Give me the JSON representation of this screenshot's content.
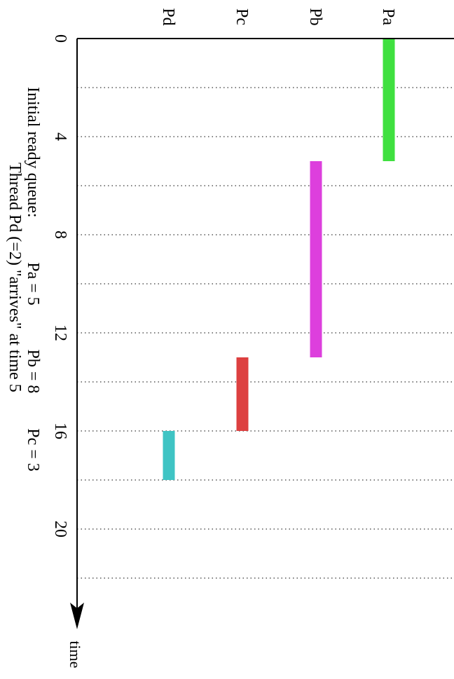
{
  "chart_data": {
    "type": "gantt",
    "axis": {
      "label": "time",
      "range": [
        0,
        23
      ],
      "ticks": [
        0,
        4,
        8,
        12,
        16,
        20
      ],
      "tick_labels": [
        "0",
        "4",
        "8",
        "12",
        "16",
        "20"
      ],
      "dotted_gridlines_at": [
        2,
        4,
        6,
        8,
        10,
        12,
        14,
        16,
        18,
        20,
        22
      ]
    },
    "rows": [
      {
        "label": "Pa",
        "color": "#3fe03f"
      },
      {
        "label": "Pb",
        "color": "#dd3fdd"
      },
      {
        "label": "Pc",
        "color": "#dd4040"
      },
      {
        "label": "Pd",
        "color": "#3fc4c4"
      }
    ],
    "bars": [
      {
        "row": "Pa",
        "start": 0,
        "end": 5
      },
      {
        "row": "Pb",
        "start": 5,
        "end": 13
      },
      {
        "row": "Pc",
        "start": 13,
        "end": 16
      },
      {
        "row": "Pd",
        "start": 16,
        "end": 18
      }
    ],
    "annotations": {
      "queue_label": "Initial ready queue:",
      "queue_items": [
        "Pa = 5",
        "Pb = 8",
        "Pc = 3"
      ],
      "arrival_note": "Thread Pd (=2) \"arrives\" at time 5"
    }
  }
}
